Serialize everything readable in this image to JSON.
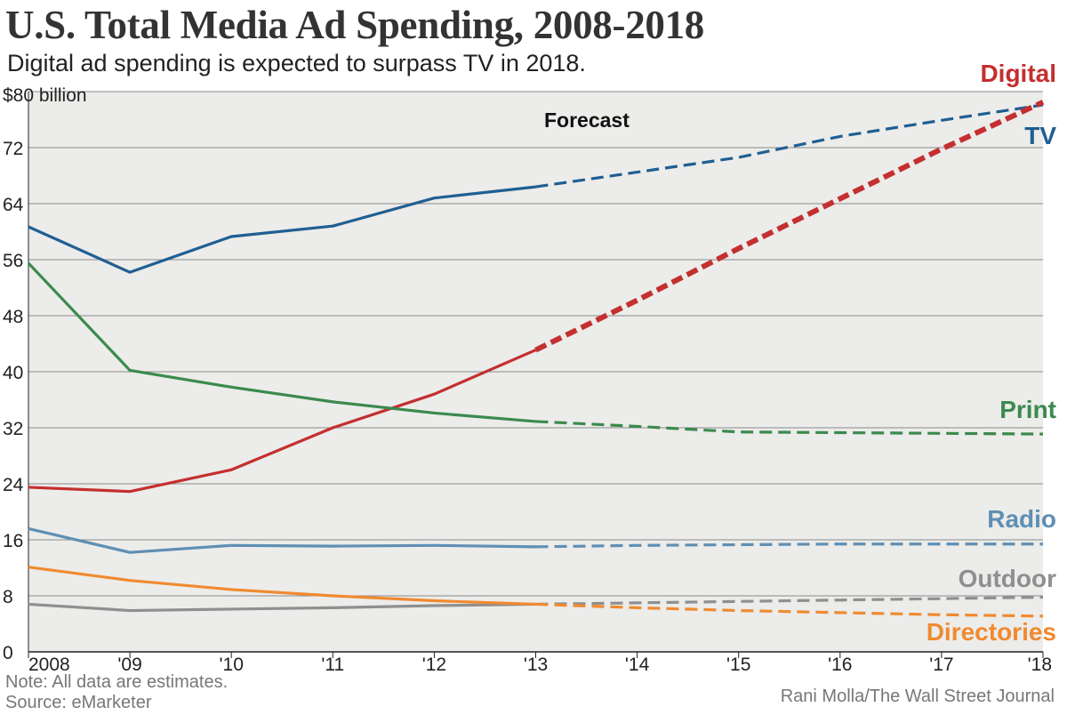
{
  "header": {
    "title": "U.S. Total Media Ad Spending, 2008-2018",
    "subtitle": "Digital ad spending is expected to surpass TV in 2018."
  },
  "footer": {
    "note": "Note: All data are estimates.",
    "source": "Source: eMarketer",
    "credit": "Rani Molla/The Wall Street Journal"
  },
  "chart_data": {
    "type": "line",
    "title": "U.S. Total Media Ad Spending, 2008-2018",
    "subtitle": "Digital ad spending is expected to surpass TV in 2018.",
    "ylabel": "$ billion",
    "ylim": [
      0,
      80
    ],
    "yticks": [
      0,
      8,
      16,
      24,
      32,
      40,
      48,
      56,
      64,
      72,
      80
    ],
    "ytick_labels": [
      "0",
      "8",
      "16",
      "24",
      "32",
      "40",
      "48",
      "56",
      "64",
      "72",
      "$80 billion"
    ],
    "x": [
      2008,
      2009,
      2010,
      2011,
      2012,
      2013,
      2014,
      2015,
      2016,
      2017,
      2018
    ],
    "xtick_labels": [
      "2008",
      "'09",
      "'10",
      "'11",
      "'12",
      "'13",
      "'14",
      "'15",
      "'16",
      "'17",
      "'18"
    ],
    "forecast_start": 2013,
    "forecast_label": "Forecast",
    "grid": true,
    "series": [
      {
        "name": "TV",
        "color": "#1f5f93",
        "values": [
          60.7,
          54.2,
          59.3,
          60.8,
          64.8,
          66.4,
          68.5,
          70.6,
          73.6,
          75.9,
          78.1
        ]
      },
      {
        "name": "Digital",
        "color": "#c42f2f",
        "values": [
          23.5,
          22.9,
          26.0,
          32.0,
          36.8,
          43.1,
          50.2,
          57.6,
          64.7,
          71.8,
          78.5
        ]
      },
      {
        "name": "Print",
        "color": "#3b8a4e",
        "values": [
          55.5,
          40.2,
          37.8,
          35.7,
          34.1,
          32.9,
          32.2,
          31.4,
          31.3,
          31.2,
          31.1
        ]
      },
      {
        "name": "Radio",
        "color": "#5f8fb4",
        "values": [
          17.6,
          14.2,
          15.2,
          15.1,
          15.2,
          15.0,
          15.2,
          15.3,
          15.4,
          15.4,
          15.4
        ]
      },
      {
        "name": "Outdoor",
        "color": "#8f8f8f",
        "values": [
          6.8,
          5.9,
          6.1,
          6.3,
          6.6,
          6.8,
          7.0,
          7.2,
          7.4,
          7.6,
          7.8
        ]
      },
      {
        "name": "Directories",
        "color": "#f08a30",
        "values": [
          12.1,
          10.2,
          8.9,
          8.0,
          7.3,
          6.8,
          6.3,
          5.9,
          5.6,
          5.3,
          5.1
        ]
      }
    ]
  }
}
